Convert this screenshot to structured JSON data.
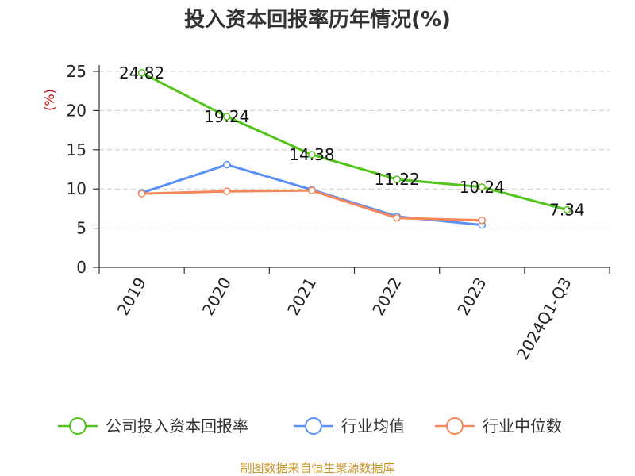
{
  "chart_data": {
    "type": "line",
    "title": "投入资本回报率历年情况(%)",
    "ylabel": "(%)",
    "xlabel": "",
    "ylim": [
      0,
      25
    ],
    "yticks": [
      0,
      5,
      10,
      15,
      20,
      25
    ],
    "categories": [
      "2019",
      "2020",
      "2021",
      "2022",
      "2023",
      "2024Q1-Q3"
    ],
    "grid": "horizontal-dashed",
    "legend_position": "bottom",
    "series": [
      {
        "name": "公司投入资本回报率",
        "color": "#52c41a",
        "values": [
          24.82,
          19.24,
          14.38,
          11.22,
          10.24,
          7.34
        ],
        "labels": [
          "24.82",
          "19.24",
          "14.38",
          "11.22",
          "10.24",
          "7.34"
        ]
      },
      {
        "name": "行业均值",
        "color": "#5b8ff9",
        "values": [
          9.5,
          13.1,
          9.9,
          6.5,
          5.4,
          null
        ]
      },
      {
        "name": "行业中位数",
        "color": "#f6875a",
        "values": [
          9.4,
          9.7,
          9.8,
          6.3,
          6.0,
          null
        ]
      }
    ],
    "source": "制图数据来自恒生聚源数据库"
  }
}
